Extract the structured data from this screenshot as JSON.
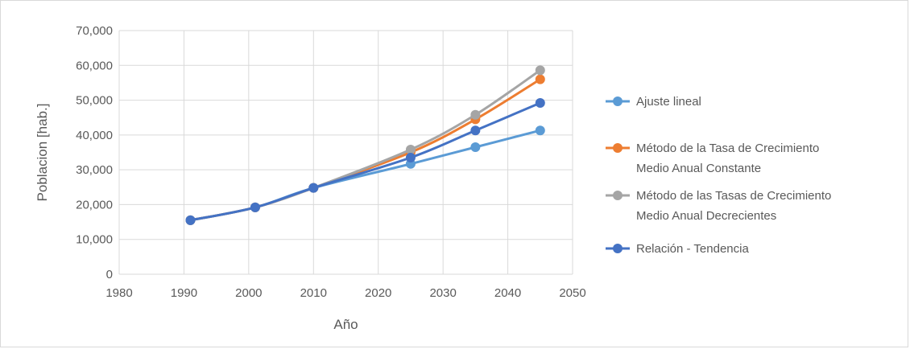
{
  "chart_data": {
    "type": "line",
    "title": "",
    "xlabel": "Año",
    "ylabel": "Poblacion [hab.]",
    "xlim": [
      1980,
      2050
    ],
    "ylim": [
      0,
      70000
    ],
    "x_ticks": [
      1980,
      1990,
      2000,
      2010,
      2020,
      2030,
      2040,
      2050
    ],
    "y_ticks": [
      0,
      10000,
      20000,
      30000,
      40000,
      50000,
      60000,
      70000
    ],
    "x_tick_labels": [
      "1980",
      "1990",
      "2000",
      "2010",
      "2020",
      "2030",
      "2040",
      "2050"
    ],
    "y_tick_labels": [
      "0",
      "10,000",
      "20,000",
      "30,000",
      "40,000",
      "50,000",
      "60,000",
      "70,000"
    ],
    "grid": true,
    "legend_position": "right",
    "series": [
      {
        "name": "Ajuste lineal",
        "color": "#5B9BD5",
        "x": [
          1991,
          2001,
          2010,
          2025,
          2035,
          2045
        ],
        "y": [
          15500,
          19200,
          24800,
          31700,
          36500,
          41300
        ]
      },
      {
        "name": "Método de la Tasa de Crecimiento Medio Anual Constante",
        "legend_lines": [
          "Método de la Tasa de Crecimiento",
          "Medio Anual Constante"
        ],
        "color": "#ED7D31",
        "x": [
          1991,
          2001,
          2010,
          2025,
          2035,
          2045
        ],
        "y": [
          15500,
          19200,
          24800,
          35000,
          44500,
          56000
        ]
      },
      {
        "name": "Método de las Tasas de Crecimiento Medio Anual Decrecientes",
        "legend_lines": [
          "Método de las Tasas de Crecimiento",
          "Medio Anual Decrecientes"
        ],
        "color": "#A5A5A5",
        "x": [
          1991,
          2001,
          2010,
          2025,
          2035,
          2045
        ],
        "y": [
          15500,
          19200,
          24800,
          35800,
          45800,
          58600
        ]
      },
      {
        "name": "Relación - Tendencia",
        "color": "#4472C4",
        "x": [
          1991,
          2001,
          2010,
          2025,
          2035,
          2045
        ],
        "y": [
          15500,
          19200,
          24800,
          33500,
          41300,
          49200
        ]
      }
    ]
  }
}
